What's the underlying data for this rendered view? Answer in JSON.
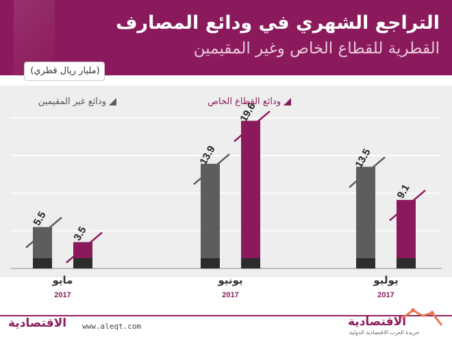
{
  "header": {
    "title_line1": "التراجع الشهري في ودائع المصارف",
    "title_line2": "القطرية للقطاع الخاص وغير المقيمين"
  },
  "unit": "(مليار ريال قطري)",
  "footer": {
    "site": "www.aleqt.com",
    "logo_left": "الاقتصادية",
    "logo_right": "الاقتصادية",
    "logo_right_sub": "جريدة العرب الاقتصادية الدولية"
  },
  "colors": {
    "private": "#8b1a5c",
    "nonresident": "#5c5d5f",
    "base": "#2c2c2c",
    "header_bg": "#8b1a5c",
    "panel_bg": "#eeeeee"
  },
  "chart_data": {
    "type": "bar",
    "title": "التراجع الشهري في ودائع المصارف القطرية للقطاع الخاص وغير المقيمين",
    "ylabel": "(مليار ريال قطري)",
    "categories": [
      "مايو",
      "يونيو",
      "يوليو"
    ],
    "year_labels": [
      "2017",
      "2017",
      "2017"
    ],
    "series": [
      {
        "name": "ودائع غير المقيمين",
        "values": [
          5.5,
          13.9,
          13.5
        ],
        "color": "#5c5d5f"
      },
      {
        "name": "ودائع القطاع الخاص",
        "values": [
          3.5,
          19.6,
          9.1
        ],
        "color": "#8b1a5c"
      }
    ],
    "legend_order": [
      1,
      0
    ],
    "value_labels": [
      [
        "5.5",
        "13.9",
        "13.5"
      ],
      [
        "3.5",
        "19.6",
        "9.1"
      ]
    ],
    "ylim": [
      0,
      22
    ],
    "grid": true,
    "legend_position": "top"
  }
}
